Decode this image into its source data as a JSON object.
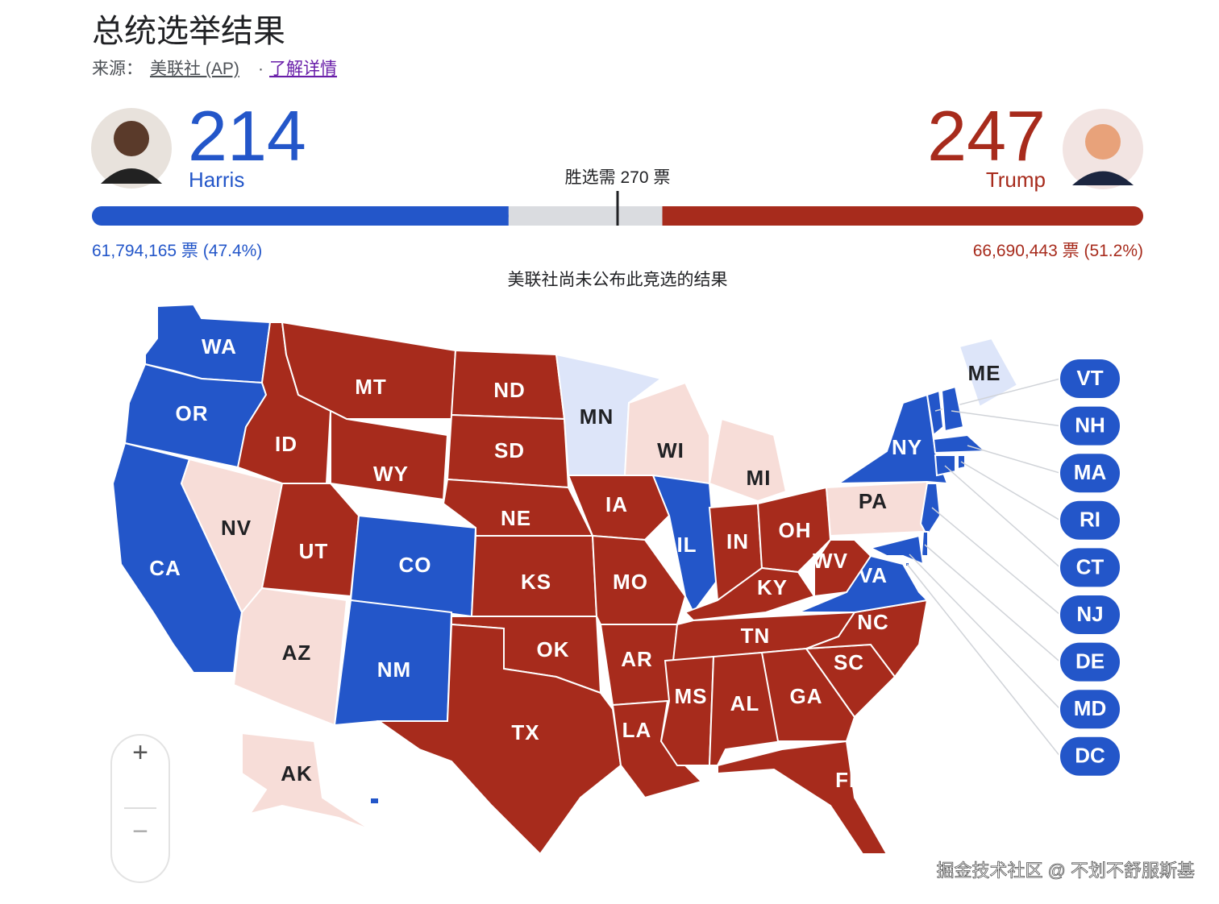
{
  "header": {
    "title": "总统选举结果",
    "source_label": "来源：",
    "source": "美联社 (AP)",
    "separator": "·",
    "link": "了解详情"
  },
  "candidates": [
    {
      "name": "Harris",
      "electoral_votes": 214,
      "popular": "61,794,165 票 (47.4%)",
      "color": "#2356c9"
    },
    {
      "name": "Trump",
      "electoral_votes": 247,
      "popular": "66,690,443 票 (51.2%)",
      "color": "#a72b1c"
    }
  ],
  "threshold": {
    "label": "胜选需 270 票",
    "value": 270
  },
  "note": "美联社尚未公布此竞选的结果",
  "map": {
    "states": [
      {
        "code": "WA",
        "color": "#2356c9"
      },
      {
        "code": "OR",
        "color": "#2356c9"
      },
      {
        "code": "CA",
        "color": "#2356c9"
      },
      {
        "code": "NV",
        "color": "#f7ddd8"
      },
      {
        "code": "ID",
        "color": "#a72b1c"
      },
      {
        "code": "MT",
        "color": "#a72b1c"
      },
      {
        "code": "WY",
        "color": "#a72b1c"
      },
      {
        "code": "UT",
        "color": "#a72b1c"
      },
      {
        "code": "CO",
        "color": "#2356c9"
      },
      {
        "code": "AZ",
        "color": "#f7ddd8"
      },
      {
        "code": "NM",
        "color": "#2356c9"
      },
      {
        "code": "ND",
        "color": "#a72b1c"
      },
      {
        "code": "SD",
        "color": "#a72b1c"
      },
      {
        "code": "NE",
        "color": "#a72b1c"
      },
      {
        "code": "KS",
        "color": "#a72b1c"
      },
      {
        "code": "OK",
        "color": "#a72b1c"
      },
      {
        "code": "TX",
        "color": "#a72b1c"
      },
      {
        "code": "MN",
        "color": "#dde5f9"
      },
      {
        "code": "IA",
        "color": "#a72b1c"
      },
      {
        "code": "MO",
        "color": "#a72b1c"
      },
      {
        "code": "AR",
        "color": "#a72b1c"
      },
      {
        "code": "LA",
        "color": "#a72b1c"
      },
      {
        "code": "WI",
        "color": "#f7ddd8"
      },
      {
        "code": "IL",
        "color": "#2356c9"
      },
      {
        "code": "MI",
        "color": "#f7ddd8"
      },
      {
        "code": "IN",
        "color": "#a72b1c"
      },
      {
        "code": "OH",
        "color": "#a72b1c"
      },
      {
        "code": "KY",
        "color": "#a72b1c"
      },
      {
        "code": "TN",
        "color": "#a72b1c"
      },
      {
        "code": "MS",
        "color": "#a72b1c"
      },
      {
        "code": "AL",
        "color": "#a72b1c"
      },
      {
        "code": "GA",
        "color": "#a72b1c"
      },
      {
        "code": "FL",
        "color": "#a72b1c"
      },
      {
        "code": "SC",
        "color": "#a72b1c"
      },
      {
        "code": "NC",
        "color": "#a72b1c"
      },
      {
        "code": "VA",
        "color": "#2356c9"
      },
      {
        "code": "WV",
        "color": "#a72b1c"
      },
      {
        "code": "PA",
        "color": "#f7ddd8"
      },
      {
        "code": "NY",
        "color": "#2356c9"
      },
      {
        "code": "ME",
        "color": "#dde5f9"
      },
      {
        "code": "AK",
        "color": "#f7ddd8"
      },
      {
        "code": "HI",
        "color": "#2356c9"
      },
      {
        "code": "VT",
        "color": "#2356c9"
      },
      {
        "code": "NH",
        "color": "#2356c9"
      },
      {
        "code": "MA",
        "color": "#2356c9"
      },
      {
        "code": "RI",
        "color": "#2356c9"
      },
      {
        "code": "CT",
        "color": "#2356c9"
      },
      {
        "code": "NJ",
        "color": "#2356c9"
      },
      {
        "code": "DE",
        "color": "#2356c9"
      },
      {
        "code": "MD",
        "color": "#2356c9"
      },
      {
        "code": "DC",
        "color": "#2356c9"
      }
    ]
  },
  "zoom": {
    "in": "+",
    "out": "−"
  },
  "watermark": "掘金技术社区 @ 不划不舒服斯基"
}
